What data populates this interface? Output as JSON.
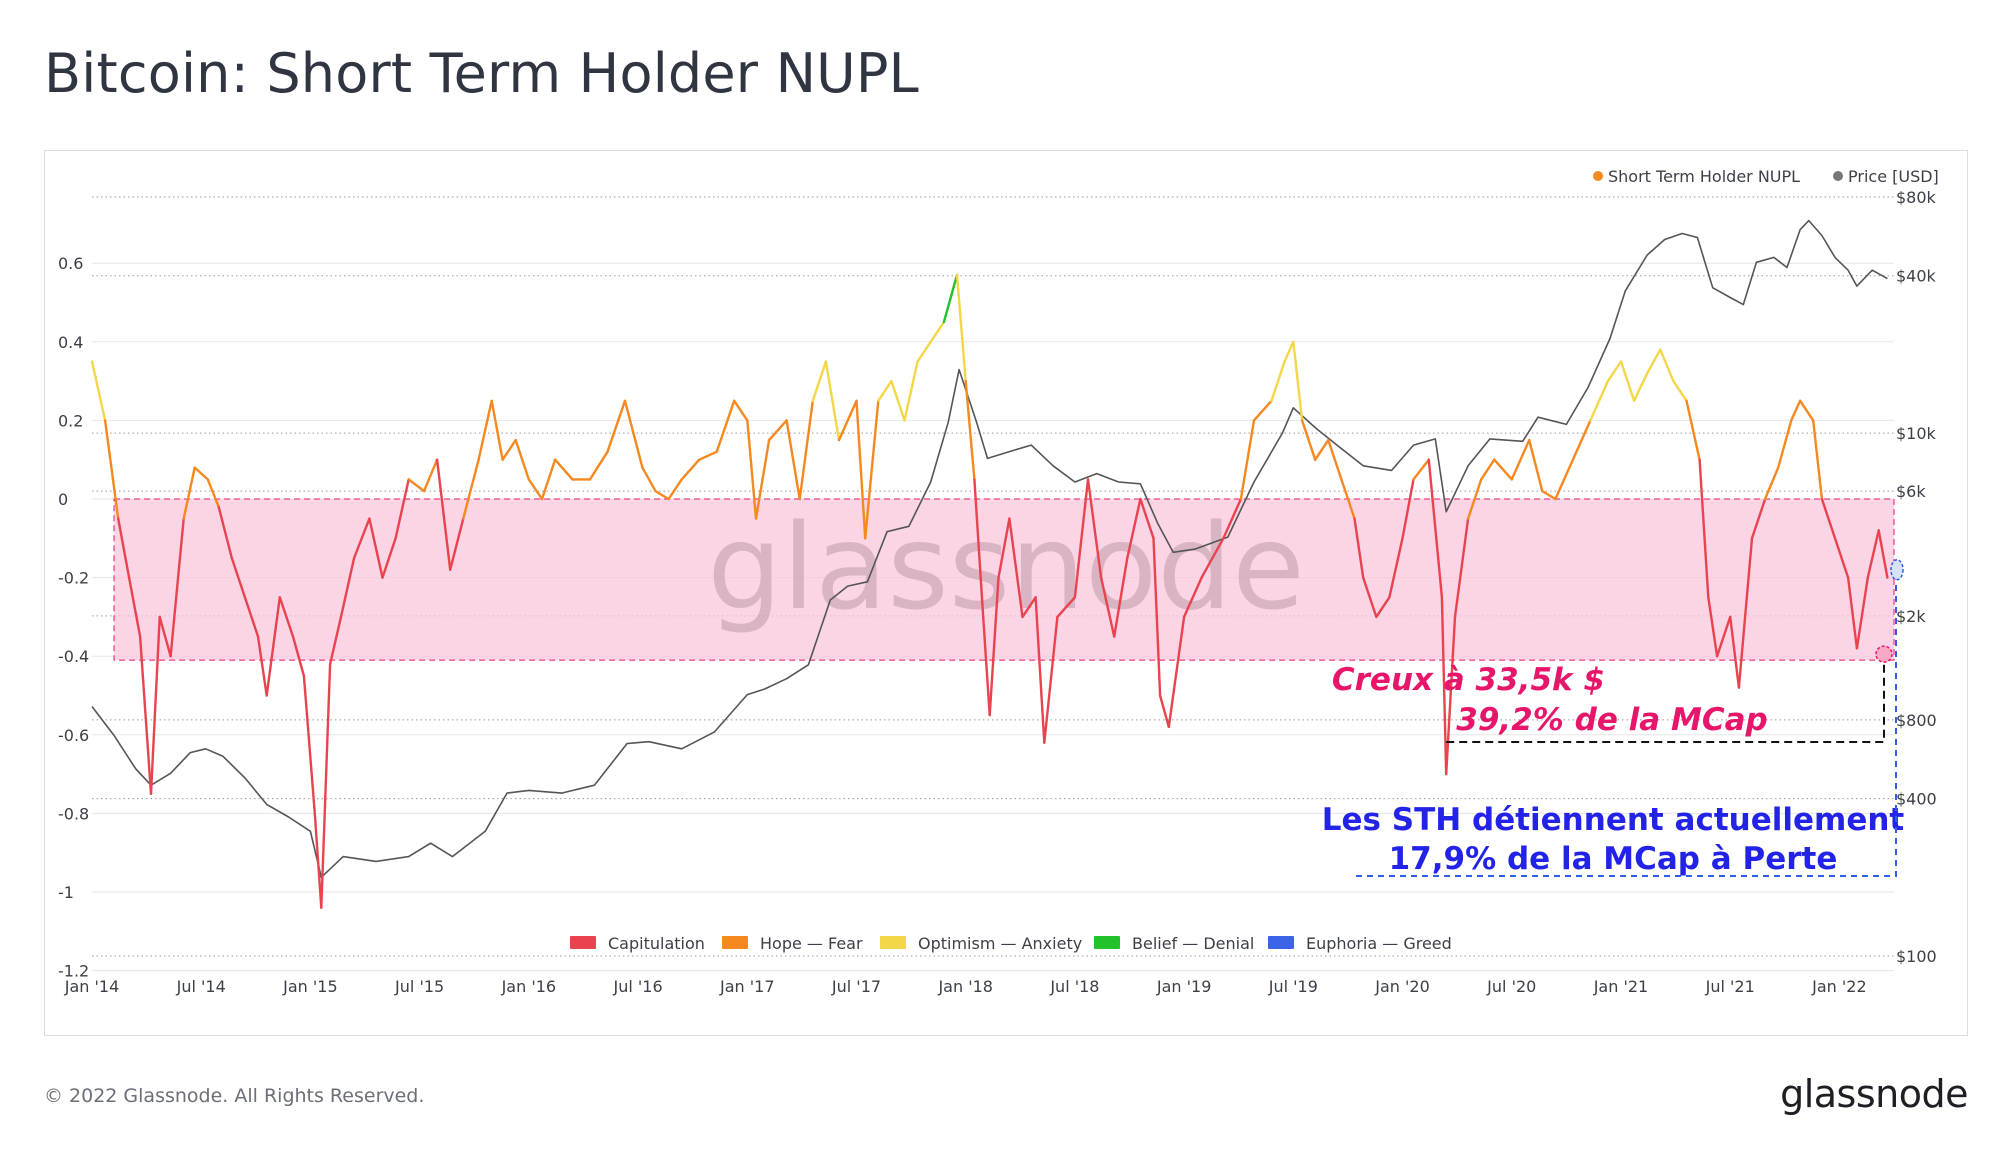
{
  "title": "Bitcoin: Short Term Holder NUPL",
  "footer": {
    "copyright": "© 2022 Glassnode. All Rights Reserved.",
    "brand": "glassnode"
  },
  "watermark": "glassnode",
  "colors": {
    "capitulation": "#e8434f",
    "hope_fear": "#f5891f",
    "optimism_anxiety": "#f3d749",
    "belief_denial": "#22c22a",
    "euphoria_greed": "#3d64e8",
    "price": "#555555",
    "pink_band": "#f9c6dc",
    "annotation_pink": "#e8166a",
    "annotation_blue": "#2323e8"
  },
  "chart_data": {
    "type": "line",
    "title": "Bitcoin: Short Term Holder NUPL",
    "y_left": {
      "ticks": [
        "0.6",
        "0.4",
        "0.2",
        "0",
        "-0.2",
        "-0.4",
        "-0.6",
        "-0.8",
        "-1",
        "-1.2"
      ],
      "values": [
        0.6,
        0.4,
        0.2,
        0,
        -0.2,
        -0.4,
        -0.6,
        -0.8,
        -1,
        -1.2
      ],
      "range": [
        -1.2,
        0.75
      ]
    },
    "y_right": {
      "scale": "log",
      "ticks": [
        "$80k",
        "$40k",
        "$10k",
        "$6k",
        "$2k",
        "$800",
        "$400",
        "$100"
      ],
      "values": [
        80000,
        40000,
        10000,
        6000,
        2000,
        800,
        400,
        100
      ]
    },
    "x_ticks": [
      "Jan '14",
      "Jul '14",
      "Jan '15",
      "Jul '15",
      "Jan '16",
      "Jul '16",
      "Jan '17",
      "Jul '17",
      "Jan '18",
      "Jul '18",
      "Jan '19",
      "Jul '19",
      "Jan '20",
      "Jul '20",
      "Jan '21",
      "Jul '21",
      "Jan '22"
    ],
    "x_range": [
      2014.0,
      2022.25
    ],
    "legend_top": [
      {
        "label": "Short Term Holder NUPL",
        "color": "#f5891f"
      },
      {
        "label": "Price [USD]",
        "color": "#777777"
      }
    ],
    "legend_bottom": [
      {
        "label": "Capitulation",
        "color": "#e8434f"
      },
      {
        "label": "Hope — Fear",
        "color": "#f5891f"
      },
      {
        "label": "Optimism — Anxiety",
        "color": "#f3d749"
      },
      {
        "label": "Belief — Denial",
        "color": "#22c22a"
      },
      {
        "label": "Euphoria — Greed",
        "color": "#3d64e8"
      }
    ],
    "band": {
      "from": 0,
      "to": -0.41
    },
    "nupl_series": {
      "name": "Short Term Holder NUPL",
      "points": [
        [
          2014.0,
          0.35
        ],
        [
          2014.06,
          0.2
        ],
        [
          2014.12,
          -0.05
        ],
        [
          2014.17,
          -0.2
        ],
        [
          2014.22,
          -0.35
        ],
        [
          2014.27,
          -0.75
        ],
        [
          2014.31,
          -0.3
        ],
        [
          2014.36,
          -0.4
        ],
        [
          2014.42,
          -0.05
        ],
        [
          2014.47,
          0.08
        ],
        [
          2014.53,
          0.05
        ],
        [
          2014.58,
          -0.02
        ],
        [
          2014.64,
          -0.15
        ],
        [
          2014.7,
          -0.25
        ],
        [
          2014.76,
          -0.35
        ],
        [
          2014.8,
          -0.5
        ],
        [
          2014.86,
          -0.25
        ],
        [
          2014.92,
          -0.35
        ],
        [
          2014.97,
          -0.45
        ],
        [
          2015.02,
          -0.8
        ],
        [
          2015.05,
          -1.04
        ],
        [
          2015.09,
          -0.42
        ],
        [
          2015.14,
          -0.3
        ],
        [
          2015.2,
          -0.15
        ],
        [
          2015.27,
          -0.05
        ],
        [
          2015.33,
          -0.2
        ],
        [
          2015.39,
          -0.1
        ],
        [
          2015.45,
          0.05
        ],
        [
          2015.52,
          0.02
        ],
        [
          2015.58,
          0.1
        ],
        [
          2015.64,
          -0.18
        ],
        [
          2015.7,
          -0.05
        ],
        [
          2015.77,
          0.1
        ],
        [
          2015.83,
          0.25
        ],
        [
          2015.88,
          0.1
        ],
        [
          2015.94,
          0.15
        ],
        [
          2016.0,
          0.05
        ],
        [
          2016.06,
          0.0
        ],
        [
          2016.12,
          0.1
        ],
        [
          2016.2,
          0.05
        ],
        [
          2016.28,
          0.05
        ],
        [
          2016.36,
          0.12
        ],
        [
          2016.44,
          0.25
        ],
        [
          2016.52,
          0.08
        ],
        [
          2016.58,
          0.02
        ],
        [
          2016.64,
          0.0
        ],
        [
          2016.7,
          0.05
        ],
        [
          2016.78,
          0.1
        ],
        [
          2016.86,
          0.12
        ],
        [
          2016.94,
          0.25
        ],
        [
          2017.0,
          0.2
        ],
        [
          2017.04,
          -0.05
        ],
        [
          2017.1,
          0.15
        ],
        [
          2017.18,
          0.2
        ],
        [
          2017.24,
          0.0
        ],
        [
          2017.3,
          0.25
        ],
        [
          2017.36,
          0.35
        ],
        [
          2017.42,
          0.15
        ],
        [
          2017.5,
          0.25
        ],
        [
          2017.54,
          -0.1
        ],
        [
          2017.6,
          0.25
        ],
        [
          2017.66,
          0.3
        ],
        [
          2017.72,
          0.2
        ],
        [
          2017.78,
          0.35
        ],
        [
          2017.84,
          0.4
        ],
        [
          2017.9,
          0.45
        ],
        [
          2017.96,
          0.57
        ],
        [
          2018.0,
          0.3
        ],
        [
          2018.04,
          0.05
        ],
        [
          2018.08,
          -0.3
        ],
        [
          2018.11,
          -0.55
        ],
        [
          2018.15,
          -0.2
        ],
        [
          2018.2,
          -0.05
        ],
        [
          2018.26,
          -0.3
        ],
        [
          2018.32,
          -0.25
        ],
        [
          2018.36,
          -0.62
        ],
        [
          2018.42,
          -0.3
        ],
        [
          2018.5,
          -0.25
        ],
        [
          2018.56,
          0.05
        ],
        [
          2018.62,
          -0.2
        ],
        [
          2018.68,
          -0.35
        ],
        [
          2018.74,
          -0.15
        ],
        [
          2018.8,
          0.0
        ],
        [
          2018.86,
          -0.1
        ],
        [
          2018.89,
          -0.5
        ],
        [
          2018.93,
          -0.58
        ],
        [
          2019.0,
          -0.3
        ],
        [
          2019.08,
          -0.2
        ],
        [
          2019.18,
          -0.1
        ],
        [
          2019.26,
          0.0
        ],
        [
          2019.32,
          0.2
        ],
        [
          2019.4,
          0.25
        ],
        [
          2019.46,
          0.35
        ],
        [
          2019.5,
          0.4
        ],
        [
          2019.54,
          0.2
        ],
        [
          2019.6,
          0.1
        ],
        [
          2019.66,
          0.15
        ],
        [
          2019.72,
          0.05
        ],
        [
          2019.78,
          -0.05
        ],
        [
          2019.82,
          -0.2
        ],
        [
          2019.88,
          -0.3
        ],
        [
          2019.94,
          -0.25
        ],
        [
          2020.0,
          -0.1
        ],
        [
          2020.05,
          0.05
        ],
        [
          2020.12,
          0.1
        ],
        [
          2020.18,
          -0.25
        ],
        [
          2020.2,
          -0.7
        ],
        [
          2020.24,
          -0.3
        ],
        [
          2020.3,
          -0.05
        ],
        [
          2020.36,
          0.05
        ],
        [
          2020.42,
          0.1
        ],
        [
          2020.5,
          0.05
        ],
        [
          2020.58,
          0.15
        ],
        [
          2020.64,
          0.02
        ],
        [
          2020.7,
          0.0
        ],
        [
          2020.78,
          0.1
        ],
        [
          2020.86,
          0.2
        ],
        [
          2020.94,
          0.3
        ],
        [
          2021.0,
          0.35
        ],
        [
          2021.06,
          0.25
        ],
        [
          2021.12,
          0.32
        ],
        [
          2021.18,
          0.38
        ],
        [
          2021.24,
          0.3
        ],
        [
          2021.3,
          0.25
        ],
        [
          2021.36,
          0.1
        ],
        [
          2021.4,
          -0.25
        ],
        [
          2021.44,
          -0.4
        ],
        [
          2021.5,
          -0.3
        ],
        [
          2021.54,
          -0.48
        ],
        [
          2021.6,
          -0.1
        ],
        [
          2021.66,
          0.0
        ],
        [
          2021.72,
          0.08
        ],
        [
          2021.78,
          0.2
        ],
        [
          2021.82,
          0.25
        ],
        [
          2021.88,
          0.2
        ],
        [
          2021.92,
          0.0
        ],
        [
          2021.98,
          -0.1
        ],
        [
          2022.04,
          -0.2
        ],
        [
          2022.08,
          -0.38
        ],
        [
          2022.13,
          -0.2
        ],
        [
          2022.18,
          -0.08
        ],
        [
          2022.22,
          -0.2
        ]
      ]
    },
    "price_series": {
      "name": "Price [USD]",
      "points": [
        [
          2014.0,
          900
        ],
        [
          2014.1,
          700
        ],
        [
          2014.2,
          520
        ],
        [
          2014.27,
          450
        ],
        [
          2014.36,
          500
        ],
        [
          2014.45,
          600
        ],
        [
          2014.52,
          620
        ],
        [
          2014.6,
          580
        ],
        [
          2014.7,
          480
        ],
        [
          2014.8,
          380
        ],
        [
          2014.9,
          340
        ],
        [
          2015.0,
          300
        ],
        [
          2015.05,
          200
        ],
        [
          2015.15,
          240
        ],
        [
          2015.3,
          230
        ],
        [
          2015.45,
          240
        ],
        [
          2015.55,
          270
        ],
        [
          2015.65,
          240
        ],
        [
          2015.8,
          300
        ],
        [
          2015.9,
          420
        ],
        [
          2016.0,
          430
        ],
        [
          2016.15,
          420
        ],
        [
          2016.3,
          450
        ],
        [
          2016.45,
          650
        ],
        [
          2016.55,
          660
        ],
        [
          2016.7,
          620
        ],
        [
          2016.85,
          720
        ],
        [
          2017.0,
          1000
        ],
        [
          2017.08,
          1050
        ],
        [
          2017.18,
          1150
        ],
        [
          2017.28,
          1300
        ],
        [
          2017.38,
          2300
        ],
        [
          2017.46,
          2600
        ],
        [
          2017.55,
          2700
        ],
        [
          2017.64,
          4200
        ],
        [
          2017.74,
          4400
        ],
        [
          2017.84,
          6500
        ],
        [
          2017.92,
          11000
        ],
        [
          2017.97,
          17500
        ],
        [
          2018.05,
          11000
        ],
        [
          2018.1,
          8000
        ],
        [
          2018.2,
          8500
        ],
        [
          2018.3,
          9000
        ],
        [
          2018.4,
          7500
        ],
        [
          2018.5,
          6500
        ],
        [
          2018.6,
          7000
        ],
        [
          2018.7,
          6500
        ],
        [
          2018.8,
          6400
        ],
        [
          2018.88,
          4500
        ],
        [
          2018.95,
          3500
        ],
        [
          2019.05,
          3600
        ],
        [
          2019.2,
          4000
        ],
        [
          2019.32,
          6500
        ],
        [
          2019.45,
          10000
        ],
        [
          2019.5,
          12500
        ],
        [
          2019.6,
          10500
        ],
        [
          2019.7,
          9000
        ],
        [
          2019.82,
          7500
        ],
        [
          2019.95,
          7200
        ],
        [
          2020.05,
          9000
        ],
        [
          2020.15,
          9500
        ],
        [
          2020.2,
          5000
        ],
        [
          2020.3,
          7500
        ],
        [
          2020.4,
          9500
        ],
        [
          2020.55,
          9300
        ],
        [
          2020.62,
          11500
        ],
        [
          2020.75,
          10800
        ],
        [
          2020.85,
          15000
        ],
        [
          2020.95,
          23000
        ],
        [
          2021.02,
          35000
        ],
        [
          2021.12,
          48000
        ],
        [
          2021.2,
          55000
        ],
        [
          2021.28,
          58000
        ],
        [
          2021.35,
          56000
        ],
        [
          2021.42,
          36000
        ],
        [
          2021.5,
          33000
        ],
        [
          2021.56,
          31000
        ],
        [
          2021.62,
          45000
        ],
        [
          2021.7,
          47000
        ],
        [
          2021.76,
          43000
        ],
        [
          2021.82,
          60000
        ],
        [
          2021.86,
          65000
        ],
        [
          2021.92,
          57000
        ],
        [
          2021.98,
          47000
        ],
        [
          2022.04,
          42000
        ],
        [
          2022.08,
          36500
        ],
        [
          2022.15,
          42000
        ],
        [
          2022.22,
          39000
        ]
      ]
    },
    "annotations": {
      "low_line1": "Creux à 33,5k $",
      "low_line2": "39,2% de la MCap",
      "current_line1": "Les STH détiennent actuellement",
      "current_line2": "17,9% de la MCap à Perte"
    }
  }
}
